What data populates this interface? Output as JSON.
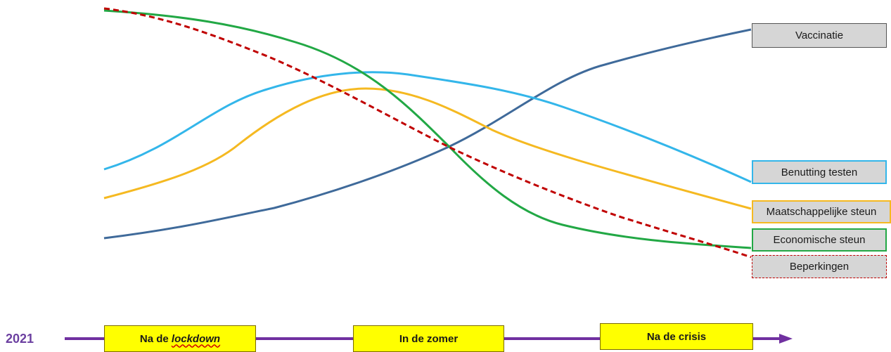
{
  "series": [
    {
      "name": "Vaccinatie",
      "color": "#3f6a9a",
      "style": "solid"
    },
    {
      "name": "Benutting testen",
      "color": "#33b6ea",
      "style": "solid"
    },
    {
      "name": "Maatschappelijke steun",
      "color": "#f5b921",
      "style": "solid"
    },
    {
      "name": "Economische steun",
      "color": "#22a845",
      "style": "solid"
    },
    {
      "name": "Beperkingen",
      "color": "#c00000",
      "style": "dashed"
    }
  ],
  "timeline": {
    "year": "2021",
    "color": "#7030a0",
    "phases": [
      {
        "prefix": "Na de ",
        "emphasis": "lockdown"
      },
      {
        "prefix": "In de zomer",
        "emphasis": ""
      },
      {
        "prefix": "Na de crisis",
        "emphasis": ""
      }
    ]
  }
}
